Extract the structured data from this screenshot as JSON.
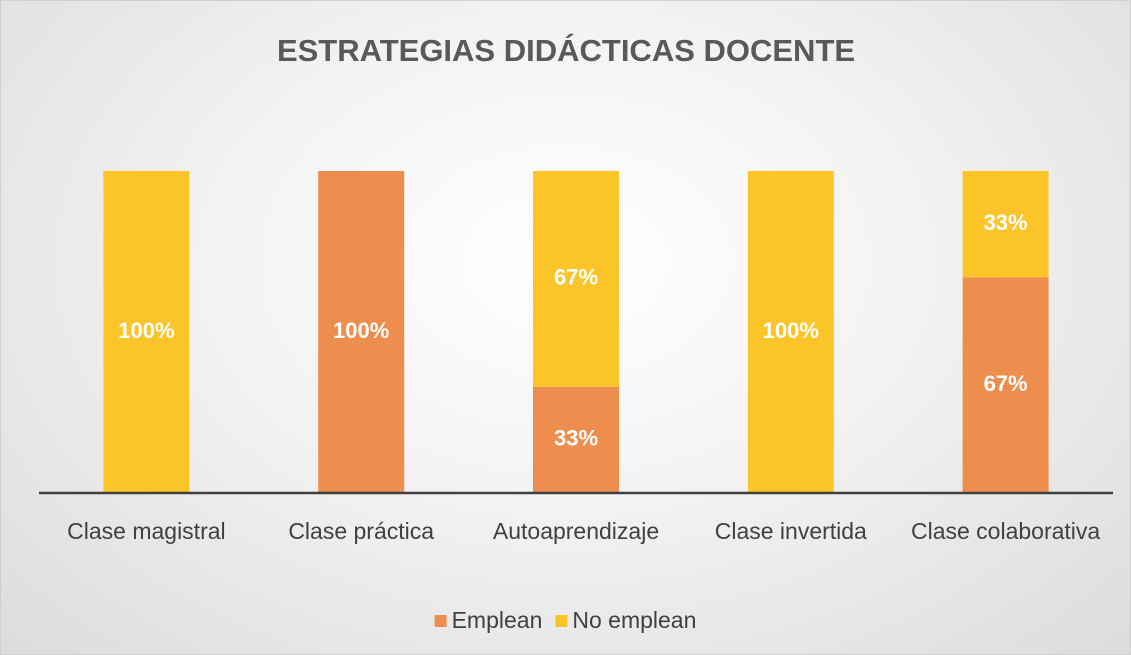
{
  "chart_data": {
    "type": "stacked_bar",
    "title": "ESTRATEGIAS DIDÁCTICAS DOCENTE",
    "categories": [
      "Clase magistral",
      "Clase práctica",
      "Autoaprendizaje",
      "Clase invertida",
      "Clase colaborativa"
    ],
    "series": [
      {
        "name": "Emplean",
        "color": "#ed8e4e",
        "values": [
          0,
          100,
          33,
          0,
          67
        ],
        "value_labels": [
          null,
          "100%",
          "33%",
          null,
          "67%"
        ]
      },
      {
        "name": "No emplean",
        "color": "#fbc52a",
        "values": [
          100,
          0,
          67,
          100,
          33
        ],
        "value_labels": [
          "100%",
          null,
          "67%",
          "100%",
          "33%"
        ]
      }
    ],
    "legend": "bottom"
  }
}
